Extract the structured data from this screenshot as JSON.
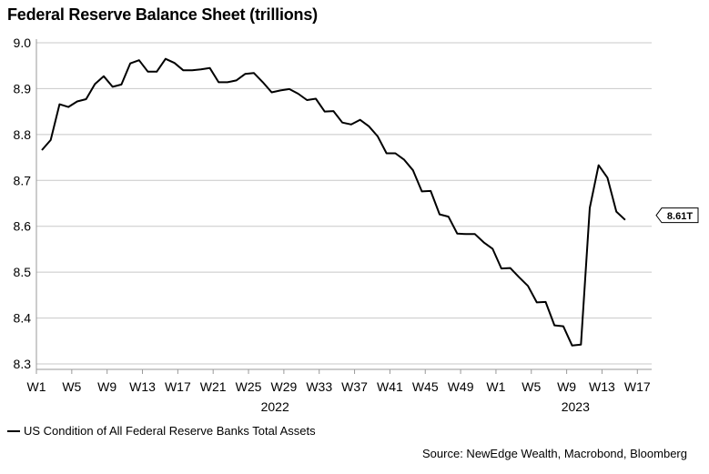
{
  "title": "Federal Reserve Balance Sheet (trillions)",
  "source": "Source: NewEdge Wealth, Macrobond, Bloomberg",
  "chart_data": {
    "type": "line",
    "title": "Federal Reserve Balance Sheet (trillions)",
    "ylim": [
      8.3,
      9.0
    ],
    "yticks": [
      "9.0",
      "8.9",
      "8.8",
      "8.7",
      "8.6",
      "8.5",
      "8.4",
      "8.3"
    ],
    "xticks": [
      "W1",
      "W5",
      "W9",
      "W13",
      "W17",
      "W21",
      "W25",
      "W29",
      "W33",
      "W37",
      "W41",
      "W45",
      "W49",
      "W1",
      "W5",
      "W9",
      "W13",
      "W17"
    ],
    "year_labels": [
      {
        "label": "2022",
        "at_week": 27
      },
      {
        "label": "2023",
        "at_week": 61
      }
    ],
    "grid": true,
    "legend_position": "bottom-left",
    "annotation": {
      "text": "8.61T",
      "value": 8.61
    },
    "series": [
      {
        "name": "US Condition of All Federal Reserve Banks Total Assets",
        "color": "#000000",
        "values": [
          8.766,
          8.788,
          8.866,
          8.86,
          8.872,
          8.877,
          8.91,
          8.927,
          8.904,
          8.909,
          8.955,
          8.962,
          8.937,
          8.937,
          8.965,
          8.956,
          8.94,
          8.94,
          8.942,
          8.945,
          8.914,
          8.914,
          8.918,
          8.932,
          8.934,
          8.914,
          8.892,
          8.896,
          8.899,
          8.889,
          8.875,
          8.878,
          8.85,
          8.851,
          8.826,
          8.822,
          8.832,
          8.818,
          8.796,
          8.759,
          8.759,
          8.745,
          8.722,
          8.676,
          8.677,
          8.626,
          8.621,
          8.584,
          8.583,
          8.583,
          8.565,
          8.551,
          8.508,
          8.509,
          8.489,
          8.47,
          8.434,
          8.435,
          8.384,
          8.382,
          8.34,
          8.342,
          8.64,
          8.733,
          8.706,
          8.632,
          8.614
        ]
      }
    ]
  }
}
